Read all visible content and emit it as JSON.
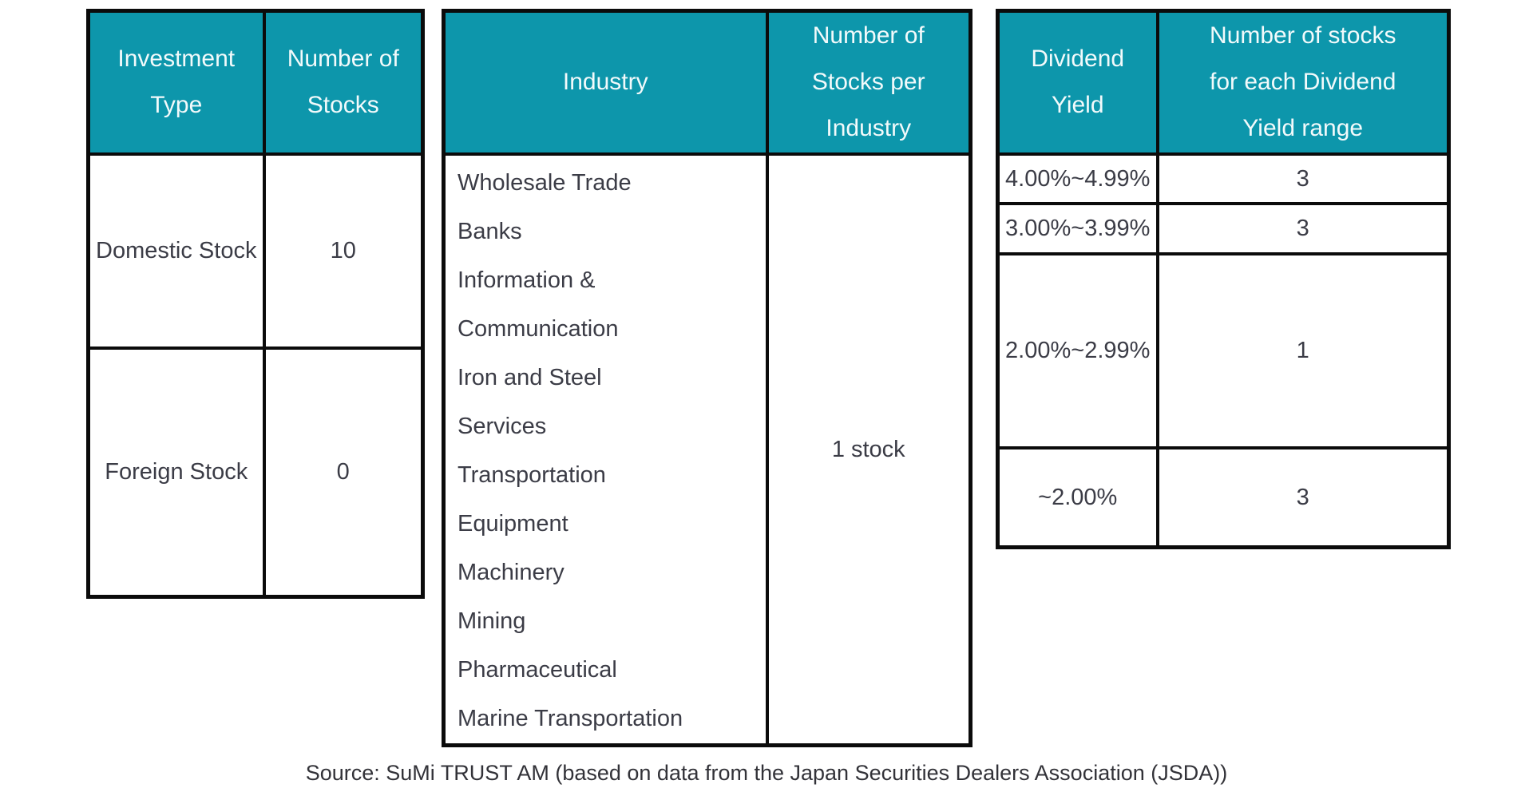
{
  "colors": {
    "header_bg": "#0d96ab",
    "header_text": "#f2fafb",
    "body_text": "#3b3c46",
    "border": "#0b0b0b",
    "background": "#ffffff"
  },
  "investment_table": {
    "headers": [
      "Investment Type",
      "Number of Stocks"
    ],
    "rows": [
      {
        "type": "Domestic Stock",
        "count": "10"
      },
      {
        "type": "Foreign Stock",
        "count": "0"
      }
    ]
  },
  "industry_table": {
    "headers": [
      "Industry",
      "Number of Stocks per Industry"
    ],
    "industries": [
      "Wholesale Trade",
      "Banks",
      "Information & Communication",
      "Iron and Steel",
      "Services",
      "Transportation Equipment",
      "Machinery",
      "Mining",
      "Pharmaceutical",
      "Marine Transportation"
    ],
    "stocks_per_industry": "1 stock"
  },
  "dividend_table": {
    "headers": [
      "Dividend Yield",
      "Number of stocks for each Dividend Yield range"
    ],
    "rows": [
      {
        "range": "4.00%~4.99%",
        "count": "3"
      },
      {
        "range": "3.00%~3.99%",
        "count": "3"
      },
      {
        "range": "2.00%~2.99%",
        "count": "1"
      },
      {
        "range": "~2.00%",
        "count": "3"
      }
    ]
  },
  "source": "Source: SuMi TRUST AM (based on data from the Japan Securities Dealers Association (JSDA))"
}
